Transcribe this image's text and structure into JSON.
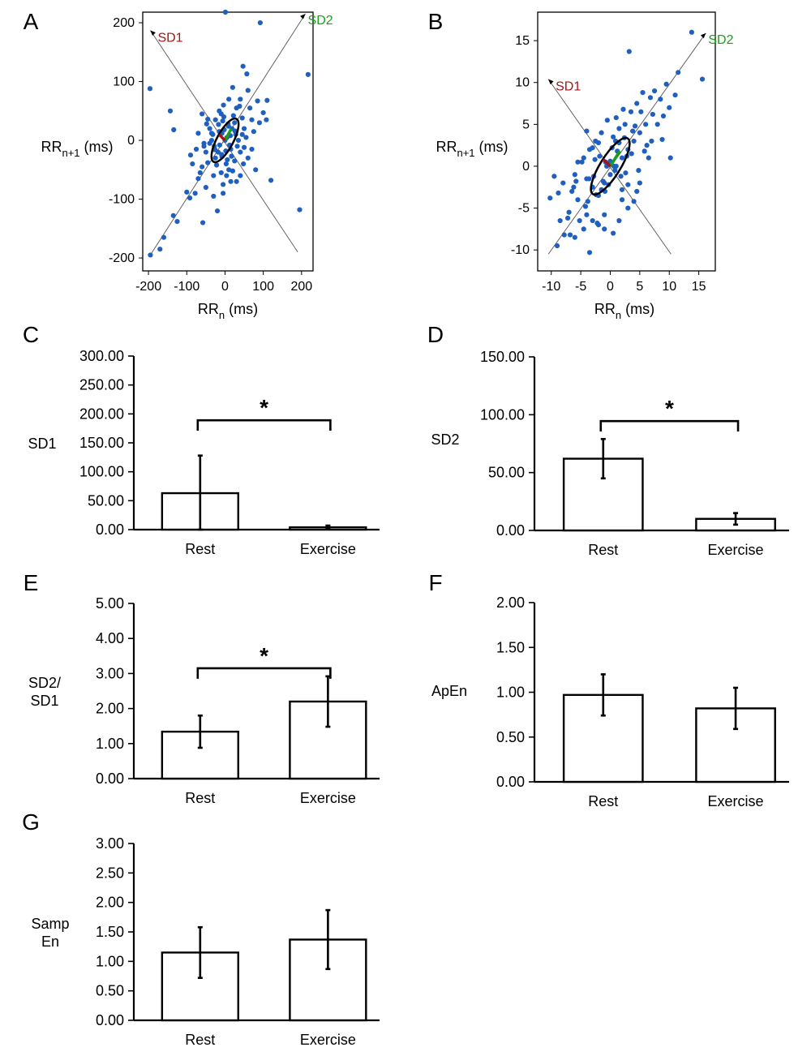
{
  "colors": {
    "point": "#1f5fbf",
    "sd1": "#a31515",
    "sd2": "#18a018",
    "ellipse": "#000000",
    "axis": "#000000"
  },
  "chart_data": [
    {
      "id": "A",
      "letter": "A",
      "type": "scatter",
      "xlabel": "RR",
      "xlabel_sub": "n",
      "xlabel_unit": " (ms)",
      "ylabel": "RR",
      "ylabel_sub": "n+1",
      "ylabel_unit": " (ms)",
      "xlim": [
        -215,
        230
      ],
      "ylim": [
        -222,
        218
      ],
      "xticks": [
        -200,
        -100,
        0,
        100,
        200
      ],
      "yticks": [
        -200,
        -100,
        0,
        100,
        200
      ],
      "sd1_label": "SD1",
      "sd2_label": "SD2",
      "identity_line": [
        [
          -195,
          -195
        ],
        [
          210,
          215
        ]
      ],
      "perp_line": [
        [
          -195,
          187
        ],
        [
          190,
          -190
        ]
      ],
      "ellipse": {
        "cx": 0,
        "cy": 0,
        "sd1": 17,
        "sd2": 50,
        "angle": 62
      },
      "points": [
        [
          1,
          218
        ],
        [
          92,
          200
        ],
        [
          217,
          112
        ],
        [
          -196,
          88
        ],
        [
          -143,
          50
        ],
        [
          -134,
          18
        ],
        [
          47,
          126
        ],
        [
          57,
          113
        ],
        [
          85,
          67
        ],
        [
          110,
          68
        ],
        [
          70,
          35
        ],
        [
          100,
          47
        ],
        [
          108,
          35
        ],
        [
          -60,
          45
        ],
        [
          -45,
          36
        ],
        [
          -35,
          12
        ],
        [
          -55,
          -10
        ],
        [
          -85,
          -40
        ],
        [
          -100,
          -88
        ],
        [
          -92,
          -98
        ],
        [
          -78,
          -90
        ],
        [
          -135,
          -128
        ],
        [
          -125,
          -138
        ],
        [
          -160,
          -165
        ],
        [
          -170,
          -185
        ],
        [
          -195,
          -195
        ],
        [
          -58,
          -140
        ],
        [
          -20,
          -120
        ],
        [
          -5,
          -90
        ],
        [
          15,
          -70
        ],
        [
          40,
          -60
        ],
        [
          60,
          -30
        ],
        [
          50,
          -12
        ],
        [
          80,
          -50
        ],
        [
          120,
          -68
        ],
        [
          195,
          -118
        ],
        [
          -30,
          -60
        ],
        [
          -5,
          -75
        ],
        [
          30,
          -70
        ],
        [
          20,
          -52
        ],
        [
          -70,
          -65
        ],
        [
          -40,
          -5
        ],
        [
          45,
          10
        ],
        [
          -15,
          50
        ],
        [
          30,
          55
        ],
        [
          10,
          70
        ],
        [
          -10,
          45
        ],
        [
          60,
          85
        ],
        [
          -40,
          20
        ],
        [
          40,
          -20
        ],
        [
          25,
          30
        ],
        [
          -25,
          -30
        ],
        [
          5,
          5
        ],
        [
          -8,
          12
        ],
        [
          12,
          -8
        ],
        [
          18,
          20
        ],
        [
          -18,
          -20
        ],
        [
          3,
          -40
        ],
        [
          -3,
          40
        ],
        [
          35,
          0
        ],
        [
          -35,
          0
        ],
        [
          25,
          -35
        ],
        [
          -25,
          35
        ],
        [
          8,
          28
        ],
        [
          -8,
          -28
        ],
        [
          15,
          -15
        ],
        [
          -15,
          15
        ],
        [
          28,
          10
        ],
        [
          -28,
          -10
        ],
        [
          2,
          -18
        ],
        [
          -2,
          18
        ],
        [
          22,
          42
        ],
        [
          -22,
          -42
        ],
        [
          45,
          38
        ],
        [
          -45,
          -38
        ],
        [
          10,
          -50
        ],
        [
          -10,
          -55
        ],
        [
          50,
          20
        ],
        [
          -50,
          -20
        ],
        [
          38,
          58
        ],
        [
          -60,
          -45
        ],
        [
          65,
          55
        ],
        [
          -65,
          -55
        ],
        [
          20,
          90
        ],
        [
          -30,
          -95
        ],
        [
          75,
          15
        ],
        [
          -75,
          -15
        ],
        [
          6,
          -33
        ],
        [
          -6,
          33
        ],
        [
          14,
          8
        ],
        [
          -14,
          -8
        ],
        [
          32,
          -10
        ],
        [
          -32,
          10
        ],
        [
          48,
          -40
        ],
        [
          -48,
          28
        ],
        [
          0,
          0
        ],
        [
          9,
          24
        ],
        [
          -9,
          -24
        ],
        [
          26,
          16
        ],
        [
          -26,
          -16
        ],
        [
          17,
          -27
        ],
        [
          -17,
          27
        ],
        [
          40,
          70
        ],
        [
          -50,
          -80
        ],
        [
          90,
          30
        ],
        [
          -90,
          -25
        ],
        [
          55,
          5
        ],
        [
          -55,
          -5
        ],
        [
          4,
          -60
        ],
        [
          -4,
          60
        ],
        [
          70,
          -15
        ],
        [
          -70,
          12
        ]
      ]
    },
    {
      "id": "B",
      "letter": "B",
      "type": "scatter",
      "xlabel": "RR",
      "xlabel_sub": "n",
      "xlabel_unit": " (ms)",
      "ylabel": "RR",
      "ylabel_sub": "n+1",
      "ylabel_unit": " (ms)",
      "xlim": [
        -12.3,
        17.8
      ],
      "ylim": [
        -12.5,
        18.4
      ],
      "xticks": [
        -10,
        -5,
        0,
        5,
        10,
        15
      ],
      "yticks": [
        -10,
        -5,
        0,
        5,
        10,
        15
      ],
      "sd1_label": "SD1",
      "sd2_label": "SD2",
      "identity_line": [
        [
          -10.5,
          -10.5
        ],
        [
          16.2,
          15.9
        ]
      ],
      "perp_line": [
        [
          -10.5,
          10.4
        ],
        [
          10.3,
          -10.5
        ]
      ],
      "ellipse": {
        "cx": 0,
        "cy": 0,
        "sd1": 1.4,
        "sd2": 4.6,
        "angle": 58
      },
      "points": [
        [
          13.8,
          16.0
        ],
        [
          15.6,
          10.4
        ],
        [
          3.2,
          13.7
        ],
        [
          -10.2,
          -3.8
        ],
        [
          -3.5,
          -10.3
        ],
        [
          -8.5,
          -6.5
        ],
        [
          -7.8,
          -8.2
        ],
        [
          -6.0,
          -8.5
        ],
        [
          -4.5,
          -7.5
        ],
        [
          -5.5,
          -4.0
        ],
        [
          -6.5,
          -3.0
        ],
        [
          -8.0,
          -2.0
        ],
        [
          -7.0,
          -5.5
        ],
        [
          -4.0,
          -5.8
        ],
        [
          -3.0,
          -6.5
        ],
        [
          -2.0,
          -7.0
        ],
        [
          -1.0,
          -7.5
        ],
        [
          0.5,
          -8.0
        ],
        [
          1.5,
          -6.5
        ],
        [
          3.0,
          -5.0
        ],
        [
          2.0,
          -4.0
        ],
        [
          4.5,
          -3.0
        ],
        [
          5.0,
          -2.0
        ],
        [
          6.5,
          1.0
        ],
        [
          7.0,
          3.0
        ],
        [
          8.0,
          5.0
        ],
        [
          9.0,
          6.0
        ],
        [
          10.0,
          7.0
        ],
        [
          11.0,
          8.5
        ],
        [
          8.5,
          8.0
        ],
        [
          7.5,
          9.0
        ],
        [
          5.5,
          8.8
        ],
        [
          4.5,
          7.5
        ],
        [
          3.5,
          6.5
        ],
        [
          2.5,
          5.0
        ],
        [
          1.5,
          4.5
        ],
        [
          0.5,
          3.5
        ],
        [
          -0.5,
          5.5
        ],
        [
          -1.5,
          4.0
        ],
        [
          -2.5,
          3.0
        ],
        [
          -3.5,
          2.0
        ],
        [
          -4.5,
          1.0
        ],
        [
          -5.5,
          0.5
        ],
        [
          -6.0,
          -1.0
        ],
        [
          -4.0,
          -1.5
        ],
        [
          -3.0,
          -2.5
        ],
        [
          -2.0,
          -3.5
        ],
        [
          -1.0,
          -2.0
        ],
        [
          0.0,
          -1.0
        ],
        [
          1.0,
          0.0
        ],
        [
          2.0,
          1.0
        ],
        [
          3.0,
          2.0
        ],
        [
          4.0,
          3.0
        ],
        [
          5.0,
          4.0
        ],
        [
          6.0,
          5.0
        ],
        [
          1.2,
          1.8
        ],
        [
          -1.2,
          -1.8
        ],
        [
          2.4,
          3.4
        ],
        [
          -2.4,
          -3.4
        ],
        [
          0.8,
          -0.5
        ],
        [
          -0.8,
          0.5
        ],
        [
          1.8,
          -1.2
        ],
        [
          -1.8,
          1.2
        ],
        [
          3.6,
          1.5
        ],
        [
          -3.6,
          -1.5
        ],
        [
          4.2,
          4.8
        ],
        [
          -4.2,
          -4.8
        ],
        [
          0.3,
          2.2
        ],
        [
          -0.3,
          -2.2
        ],
        [
          2.6,
          -0.8
        ],
        [
          -2.6,
          0.8
        ],
        [
          5.2,
          6.5
        ],
        [
          -5.2,
          -6.5
        ],
        [
          3.0,
          -2.2
        ],
        [
          -3.0,
          2.2
        ],
        [
          6.2,
          2.5
        ],
        [
          -6.2,
          -2.5
        ],
        [
          1.0,
          5.8
        ],
        [
          -1.0,
          -5.8
        ],
        [
          7.2,
          6.2
        ],
        [
          -7.2,
          -6.2
        ],
        [
          4.8,
          -0.5
        ],
        [
          -4.8,
          0.5
        ],
        [
          2.2,
          6.8
        ],
        [
          -2.2,
          -6.8
        ],
        [
          10.2,
          1.0
        ],
        [
          -9.5,
          -1.2
        ],
        [
          8.8,
          3.2
        ],
        [
          -8.8,
          -3.2
        ],
        [
          0.0,
          0.6
        ],
        [
          0.6,
          0.0
        ],
        [
          -0.6,
          0.0
        ],
        [
          1.5,
          2.8
        ],
        [
          -1.5,
          -2.8
        ],
        [
          2.8,
          1.2
        ],
        [
          -2.8,
          -1.2
        ],
        [
          3.8,
          4.2
        ],
        [
          -3.8,
          -4.2
        ],
        [
          0.9,
          3.0
        ],
        [
          -0.9,
          -3.0
        ],
        [
          6.8,
          8.2
        ],
        [
          -6.8,
          -8.2
        ],
        [
          9.5,
          9.8
        ],
        [
          11.5,
          11.2
        ],
        [
          -9.0,
          -9.5
        ],
        [
          4.0,
          -4.2
        ],
        [
          -4.0,
          4.2
        ],
        [
          5.8,
          1.8
        ],
        [
          -5.8,
          -1.8
        ],
        [
          2.0,
          -2.8
        ],
        [
          -2.0,
          2.8
        ]
      ]
    },
    {
      "id": "C",
      "letter": "C",
      "type": "bar",
      "ylabel": "SD1",
      "categories": [
        "Rest",
        "Exercise"
      ],
      "values": [
        63,
        4
      ],
      "errors": [
        65,
        3
      ],
      "ylim": [
        0,
        300
      ],
      "yticks": [
        "0.00",
        "50.00",
        "100.00",
        "150.00",
        "200.00",
        "250.00",
        "300.00"
      ],
      "significance": "*"
    },
    {
      "id": "D",
      "letter": "D",
      "type": "bar",
      "ylabel": "SD2",
      "categories": [
        "Rest",
        "Exercise"
      ],
      "values": [
        62,
        10
      ],
      "errors": [
        17,
        5
      ],
      "ylim": [
        0,
        150
      ],
      "yticks": [
        "0.00",
        "50.00",
        "100.00",
        "150.00"
      ],
      "significance": "*"
    },
    {
      "id": "E",
      "letter": "E",
      "type": "bar",
      "ylabel_lines": [
        "SD2/",
        "SD1"
      ],
      "categories": [
        "Rest",
        "Exercise"
      ],
      "values": [
        1.34,
        2.2
      ],
      "errors": [
        0.46,
        0.72
      ],
      "ylim": [
        0,
        5
      ],
      "yticks": [
        "0.00",
        "1.00",
        "2.00",
        "3.00",
        "4.00",
        "5.00"
      ],
      "significance": "*"
    },
    {
      "id": "F",
      "letter": "F",
      "type": "bar",
      "ylabel": "ApEn",
      "categories": [
        "Rest",
        "Exercise"
      ],
      "values": [
        0.97,
        0.82
      ],
      "errors": [
        0.23,
        0.23
      ],
      "ylim": [
        0,
        2
      ],
      "yticks": [
        "0.00",
        "0.50",
        "1.00",
        "1.50",
        "2.00"
      ],
      "significance": ""
    },
    {
      "id": "G",
      "letter": "G",
      "type": "bar",
      "ylabel_lines": [
        "Samp",
        "En"
      ],
      "categories": [
        "Rest",
        "Exercise"
      ],
      "values": [
        1.15,
        1.37
      ],
      "errors": [
        0.43,
        0.5
      ],
      "ylim": [
        0,
        3
      ],
      "yticks": [
        "0.00",
        "0.50",
        "1.00",
        "1.50",
        "2.00",
        "2.50",
        "3.00"
      ],
      "significance": ""
    }
  ]
}
